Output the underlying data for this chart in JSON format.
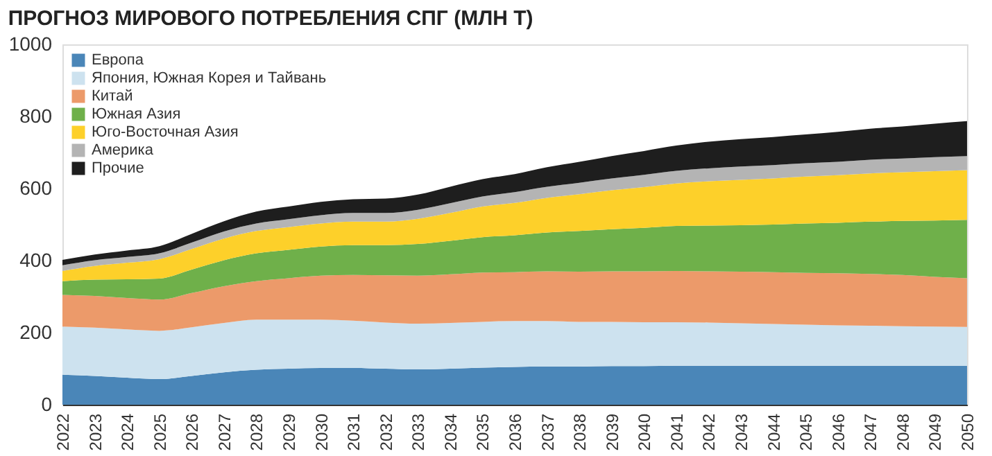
{
  "chart_data": {
    "type": "area",
    "stacked": true,
    "title": "ПРОГНОЗ МИРОВОГО ПОТРЕБЛЕНИЯ СПГ (МЛН Т)",
    "categories": [
      "2022",
      "2023",
      "2024",
      "2025",
      "2026",
      "2027",
      "2028",
      "2029",
      "2030",
      "2031",
      "2032",
      "2033",
      "2034",
      "2035",
      "2036",
      "2037",
      "2038",
      "2039",
      "2040",
      "2041",
      "2042",
      "2043",
      "2044",
      "2045",
      "2046",
      "2047",
      "2048",
      "2049",
      "2050"
    ],
    "series": [
      {
        "name": "Европа",
        "color": "#4a86b8",
        "values": [
          83,
          80,
          75,
          71,
          80,
          90,
          97,
          100,
          102,
          102,
          100,
          98,
          100,
          103,
          105,
          106,
          106,
          107,
          107,
          108,
          108,
          108,
          108,
          108,
          108,
          108,
          108,
          108,
          108
        ]
      },
      {
        "name": "Япония, Южная Корея и Тайвань",
        "color": "#cde2ef",
        "values": [
          134,
          134,
          134,
          134,
          135,
          137,
          139,
          136,
          134,
          131,
          128,
          127,
          127,
          127,
          127,
          126,
          124,
          123,
          122,
          121,
          120,
          118,
          116,
          114,
          112,
          111,
          110,
          109,
          108
        ]
      },
      {
        "name": "Китай",
        "color": "#ec9a6a",
        "values": [
          88,
          88,
          87,
          87,
          95,
          102,
          107,
          115,
          122,
          127,
          131,
          133,
          135,
          137,
          136,
          138,
          139,
          140,
          141,
          142,
          142,
          143,
          144,
          144,
          145,
          144,
          142,
          138,
          135
        ]
      },
      {
        "name": "Южная Азия",
        "color": "#6fb04a",
        "values": [
          38,
          45,
          52,
          58,
          65,
          72,
          77,
          79,
          81,
          83,
          84,
          88,
          93,
          98,
          102,
          108,
          113,
          117,
          121,
          125,
          127,
          129,
          132,
          137,
          140,
          145,
          150,
          156,
          162
        ]
      },
      {
        "name": "Юго-Восточная Азия",
        "color": "#fdd02a",
        "values": [
          28,
          38,
          46,
          54,
          57,
          60,
          62,
          63,
          64,
          65,
          65,
          70,
          77,
          85,
          90,
          96,
          102,
          108,
          113,
          118,
          123,
          126,
          128,
          130,
          132,
          134,
          135,
          137,
          138
        ]
      },
      {
        "name": "Америка",
        "color": "#b4b4b4",
        "values": [
          16,
          16,
          16,
          16,
          18,
          20,
          21,
          22,
          23,
          24,
          24,
          25,
          27,
          28,
          30,
          31,
          32,
          33,
          34,
          35,
          36,
          37,
          37,
          37,
          37,
          38,
          38,
          39,
          39
        ]
      },
      {
        "name": "Прочие",
        "color": "#1e1e1e",
        "values": [
          15,
          16,
          18,
          20,
          24,
          28,
          33,
          35,
          37,
          38,
          40,
          42,
          46,
          48,
          50,
          54,
          58,
          62,
          66,
          70,
          74,
          76,
          78,
          80,
          83,
          86,
          89,
          93,
          97
        ]
      }
    ],
    "ylim": [
      0,
      1000
    ],
    "yticks": [
      0,
      200,
      400,
      600,
      800,
      1000
    ],
    "grid": false,
    "legend": "top left"
  }
}
